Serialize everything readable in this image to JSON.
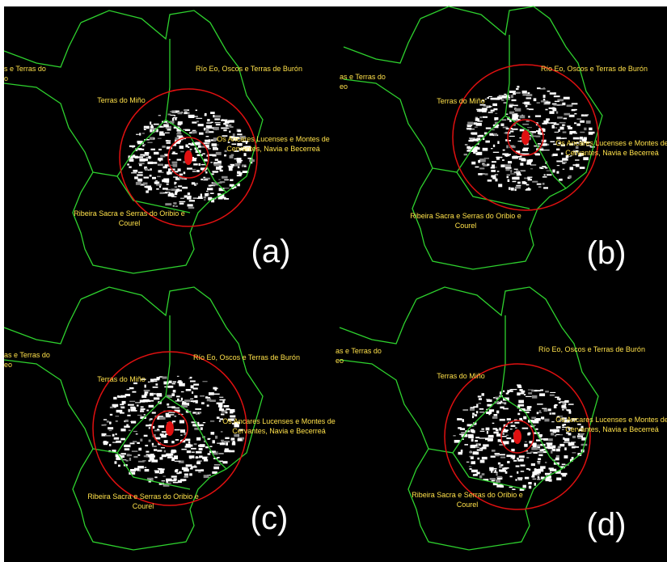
{
  "panels": [
    {
      "label": "(a)",
      "regions": [
        [
          "s e Terras do",
          "o"
        ],
        [
          "Terras do Miño"
        ],
        [
          "Río Eo, Oscos e Terras de Burón"
        ],
        [
          "Os Ancares Lucenses e Montes de",
          "Cervantes, Navia e Becerreá"
        ],
        [
          "Ribeira Sacra e Serras do Oribio e",
          "Courel"
        ]
      ]
    },
    {
      "label": "(b)",
      "regions": [
        [
          "as e Terras do",
          "eo"
        ],
        [
          "Terras do Miño"
        ],
        [
          "Río Eo, Oscos e Terras de Burón"
        ],
        [
          "Os Ancares Lucenses e Montes de",
          "Cervantes, Navia e Becerreá"
        ],
        [
          "Ribeira Sacra e Serras do Oribio e",
          "Courel"
        ]
      ]
    },
    {
      "label": "(c)",
      "regions": [
        [
          "as e Terras do",
          "eo"
        ],
        [
          "Terras do Miño"
        ],
        [
          "Río Eo, Oscos e Terras de Burón"
        ],
        [
          "Os Ancares Lucenses e Montes de",
          "Cervantes, Navia e Becerreá"
        ],
        [
          "Ribeira Sacra e Serras do Oribio e",
          "Courel"
        ]
      ]
    },
    {
      "label": "(d)",
      "regions": [
        [
          "as e Terras do",
          "eo"
        ],
        [
          "Terras do Miño"
        ],
        [
          "Río Eo, Oscos e Terras de Burón"
        ],
        [
          "Os Ancares Lucenses e Montes de",
          "Cervantes, Navia e Becerreá"
        ],
        [
          "Ribeira Sacra e Serras do Oribio e",
          "Courel"
        ]
      ]
    }
  ]
}
